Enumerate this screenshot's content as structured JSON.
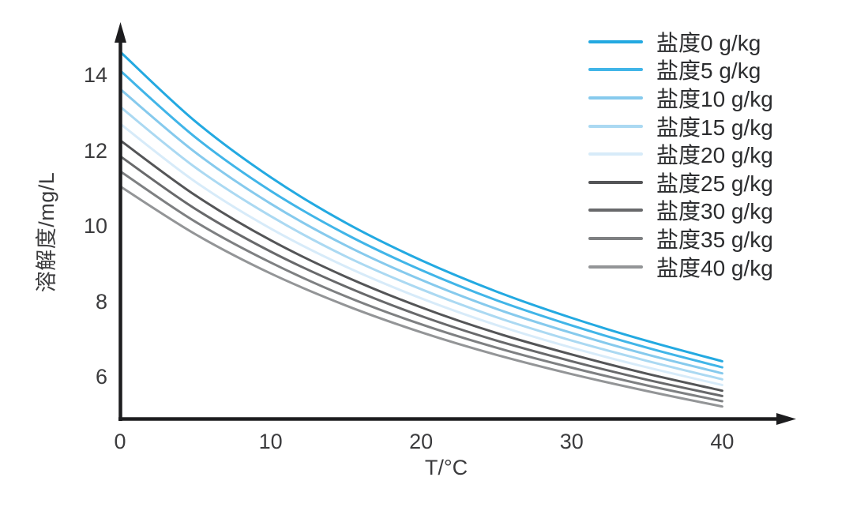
{
  "chart_data": {
    "type": "line",
    "title": "",
    "xlabel": "T/°C",
    "ylabel": "溶解度/mg/L",
    "x": [
      0,
      5,
      10,
      15,
      20,
      25,
      30,
      35,
      40
    ],
    "x_ticks": [
      0,
      10,
      20,
      30,
      40
    ],
    "y_ticks": [
      6,
      8,
      10,
      12,
      14
    ],
    "xlim": [
      0,
      40
    ],
    "ylim": [
      5,
      15
    ],
    "grid": false,
    "legend_position": "top-right",
    "axis_color": "#1d1d1f",
    "tick_label_color": "#3b3b3d",
    "series": [
      {
        "label": "盐度0 g/kg",
        "salinity": 0,
        "color": "#23a9e1",
        "values": [
          14.62,
          12.77,
          11.29,
          10.08,
          9.09,
          8.26,
          7.56,
          6.95,
          6.41
        ]
      },
      {
        "label": "盐度5 g/kg",
        "salinity": 5,
        "color": "#41b5e8",
        "values": [
          14.12,
          12.35,
          10.93,
          9.78,
          8.83,
          8.03,
          7.36,
          6.77,
          6.25
        ]
      },
      {
        "label": "盐度10 g/kg",
        "salinity": 10,
        "color": "#86caed",
        "values": [
          13.63,
          11.95,
          10.59,
          9.48,
          8.57,
          7.8,
          7.16,
          6.59,
          6.09
        ]
      },
      {
        "label": "盐度15 g/kg",
        "salinity": 15,
        "color": "#abd9f2",
        "values": [
          13.16,
          11.55,
          10.26,
          9.19,
          8.32,
          7.58,
          6.96,
          6.42,
          5.93
        ]
      },
      {
        "label": "盐度20 g/kg",
        "salinity": 20,
        "color": "#d7ebf9",
        "values": [
          12.71,
          11.17,
          9.93,
          8.92,
          8.08,
          7.37,
          6.77,
          6.25,
          5.78
        ]
      },
      {
        "label": "盐度25 g/kg",
        "salinity": 25,
        "color": "#545557",
        "values": [
          12.27,
          10.81,
          9.62,
          8.65,
          7.84,
          7.16,
          6.59,
          6.08,
          5.63
        ]
      },
      {
        "label": "盐度30 g/kg",
        "salinity": 30,
        "color": "#68696b",
        "values": [
          11.85,
          10.45,
          9.32,
          8.39,
          7.61,
          6.96,
          6.41,
          5.92,
          5.49
        ]
      },
      {
        "label": "盐度35 g/kg",
        "salinity": 35,
        "color": "#7e8082",
        "values": [
          11.45,
          10.11,
          9.03,
          8.13,
          7.39,
          6.77,
          6.24,
          5.77,
          5.35
        ]
      },
      {
        "label": "盐度40 g/kg",
        "salinity": 40,
        "color": "#939597",
        "values": [
          11.05,
          9.78,
          8.74,
          7.89,
          7.18,
          6.58,
          6.07,
          5.62,
          5.21
        ]
      }
    ]
  }
}
